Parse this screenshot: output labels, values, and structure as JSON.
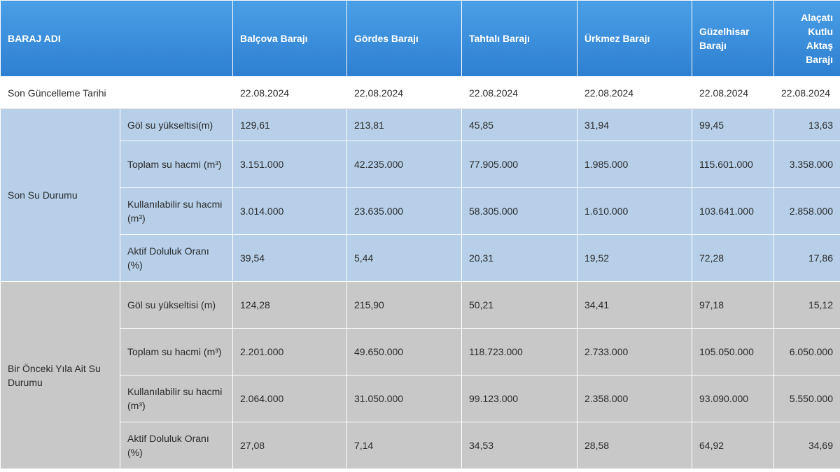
{
  "header": {
    "name_label": "BARAJ ADI",
    "dams": [
      "Balçova Barajı",
      "Gördes Barajı",
      "Tahtalı Barajı",
      "Ürkmez Barajı",
      "Güzelhisar Barajı",
      "Alaçatı Kutlu Aktaş Barajı"
    ]
  },
  "date_row": {
    "label": "Son Güncelleme Tarihi",
    "values": [
      "22.08.2024",
      "22.08.2024",
      "22.08.2024",
      "22.08.2024",
      "22.08.2024",
      "22.08.2024"
    ]
  },
  "current": {
    "group_label": "Son Su Durumu",
    "rows": [
      {
        "label": "Göl su yükseltisi(m)",
        "values": [
          "129,61",
          "213,81",
          "45,85",
          "31,94",
          "99,45",
          "13,63"
        ]
      },
      {
        "label": "Toplam su hacmi (m³)",
        "values": [
          "3.151.000",
          "42.235.000",
          "77.905.000",
          "1.985.000",
          "115.601.000",
          "3.358.000"
        ]
      },
      {
        "label": "Kullanılabilir su hacmi (m³)",
        "values": [
          "3.014.000",
          "23.635.000",
          "58.305.000",
          "1.610.000",
          "103.641.000",
          "2.858.000"
        ]
      },
      {
        "label": "Aktif Doluluk Oranı (%)",
        "values": [
          "39,54",
          "5,44",
          "20,31",
          "19,52",
          "72,28",
          "17,86"
        ]
      }
    ]
  },
  "previous": {
    "group_label": "Bir Önceki Yıla Ait Su Durumu",
    "rows": [
      {
        "label": "Göl su yükseltisi (m)",
        "values": [
          "124,28",
          "215,90",
          "50,21",
          "34,41",
          "97,18",
          "15,12"
        ]
      },
      {
        "label": "Toplam su hacmi (m³)",
        "values": [
          "2.201.000",
          "49.650.000",
          "118.723.000",
          "2.733.000",
          "105.050.000",
          "6.050.000"
        ]
      },
      {
        "label": "Kullanılabilir su hacmi (m³)",
        "values": [
          "2.064.000",
          "31.050.000",
          "99.123.000",
          "2.358.000",
          "93.090.000",
          "5.550.000"
        ]
      },
      {
        "label": "Aktif Doluluk Oranı (%)",
        "values": [
          "27,08",
          "7,14",
          "34,53",
          "28,58",
          "64,92",
          "34,69"
        ]
      }
    ]
  },
  "colors": {
    "header_blue": "#3a8fdc",
    "current_bg": "#b7cfe8",
    "previous_bg": "#c8c8c8"
  }
}
